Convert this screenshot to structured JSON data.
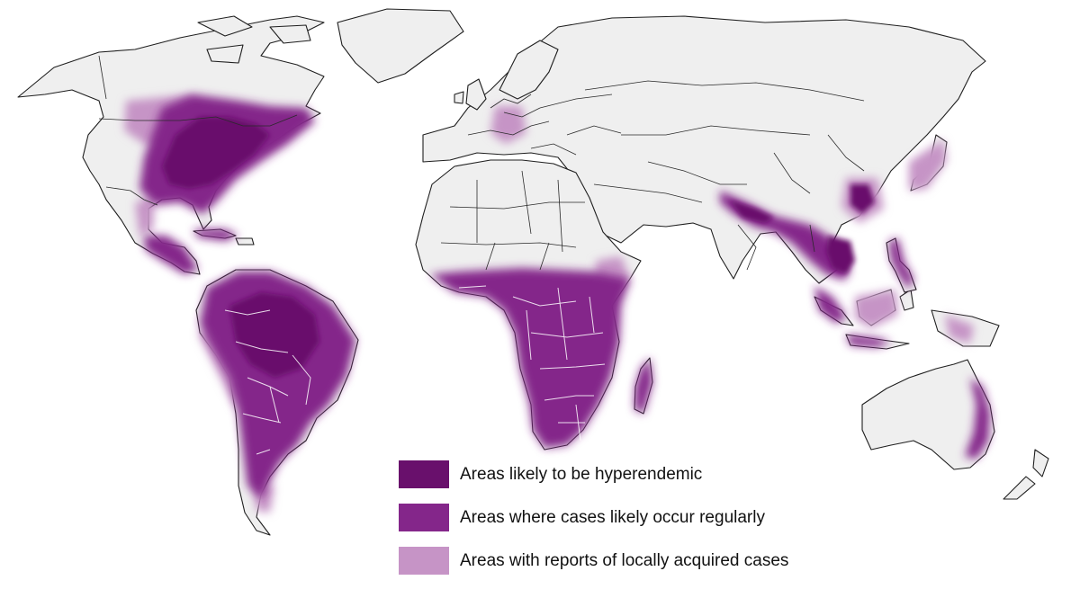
{
  "colors": {
    "land": "#efefef",
    "hyperendemic": "#69106c",
    "regular": "#84268a",
    "local": "#c694c6"
  },
  "legend": {
    "items": [
      {
        "label": "Areas likely to be hyperendemic",
        "color": "#69106c"
      },
      {
        "label": "Areas where cases likely occur regularly",
        "color": "#84268a"
      },
      {
        "label": "Areas with reports of locally acquired cases",
        "color": "#c694c6"
      }
    ]
  }
}
